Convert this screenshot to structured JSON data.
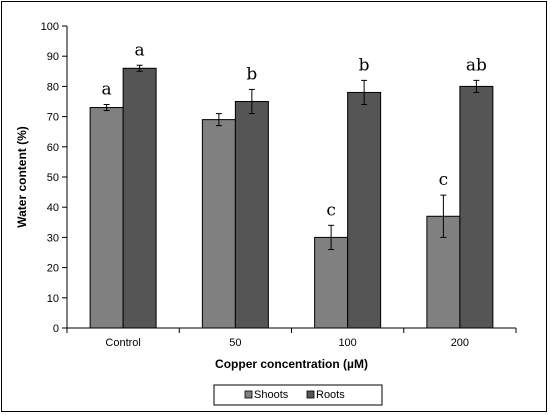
{
  "chart_data": {
    "type": "bar",
    "categories": [
      "Control",
      "50",
      "100",
      "200"
    ],
    "series": [
      {
        "name": "Shoots",
        "values": [
          73,
          69,
          30,
          37
        ],
        "errors": [
          1,
          2,
          4,
          7
        ],
        "letters": [
          "a",
          "",
          "c",
          "c"
        ],
        "color": "#808080"
      },
      {
        "name": "Roots",
        "values": [
          86,
          75,
          78,
          80
        ],
        "errors": [
          1,
          4,
          4,
          2
        ],
        "letters": [
          "a",
          "b",
          "b",
          "ab"
        ],
        "color": "#555555"
      }
    ],
    "title": "",
    "xlabel": "Copper concentration (µM)",
    "ylabel": "Water content (%)",
    "ylim": [
      0,
      100
    ],
    "yticks": [
      0,
      10,
      20,
      30,
      40,
      50,
      60,
      70,
      80,
      90,
      100
    ],
    "grid": false,
    "legend_position": "bottom"
  }
}
